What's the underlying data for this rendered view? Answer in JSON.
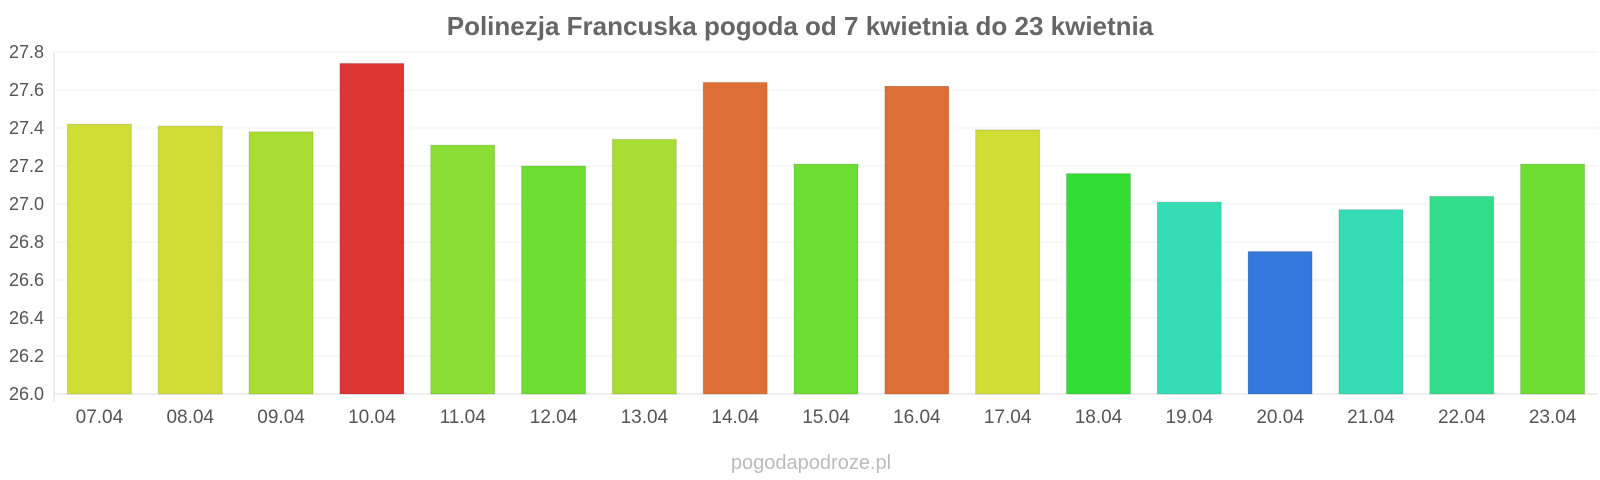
{
  "chart_data": {
    "type": "bar",
    "title": "Polinezja Francuska pogoda od 7 kwietnia do 23 kwietnia",
    "xlabel": "",
    "ylabel": "",
    "categories": [
      "07.04",
      "08.04",
      "09.04",
      "10.04",
      "11.04",
      "12.04",
      "13.04",
      "14.04",
      "15.04",
      "16.04",
      "17.04",
      "18.04",
      "19.04",
      "20.04",
      "21.04",
      "22.04",
      "23.04"
    ],
    "values": [
      27.42,
      27.41,
      27.38,
      27.74,
      27.31,
      27.2,
      27.34,
      27.64,
      27.21,
      27.62,
      27.39,
      27.16,
      27.01,
      26.75,
      26.97,
      27.04,
      27.21
    ],
    "bar_colors": [
      "#cfdd34",
      "#cfdd34",
      "#aadd34",
      "#dd3434",
      "#8add34",
      "#6ddd34",
      "#aadd34",
      "#dd6f34",
      "#6ddd34",
      "#dd6f34",
      "#cfdd34",
      "#34dd34",
      "#34ddb3",
      "#3477dd",
      "#34ddb3",
      "#34dd8a",
      "#6ddd34"
    ],
    "ylim": [
      26.0,
      27.8
    ],
    "yticks": [
      "26.0",
      "26.2",
      "26.4",
      "26.6",
      "26.8",
      "27.0",
      "27.2",
      "27.4",
      "27.6",
      "27.8"
    ],
    "grid": true,
    "legend": "none"
  },
  "credit": "pogodapodroze.pl"
}
